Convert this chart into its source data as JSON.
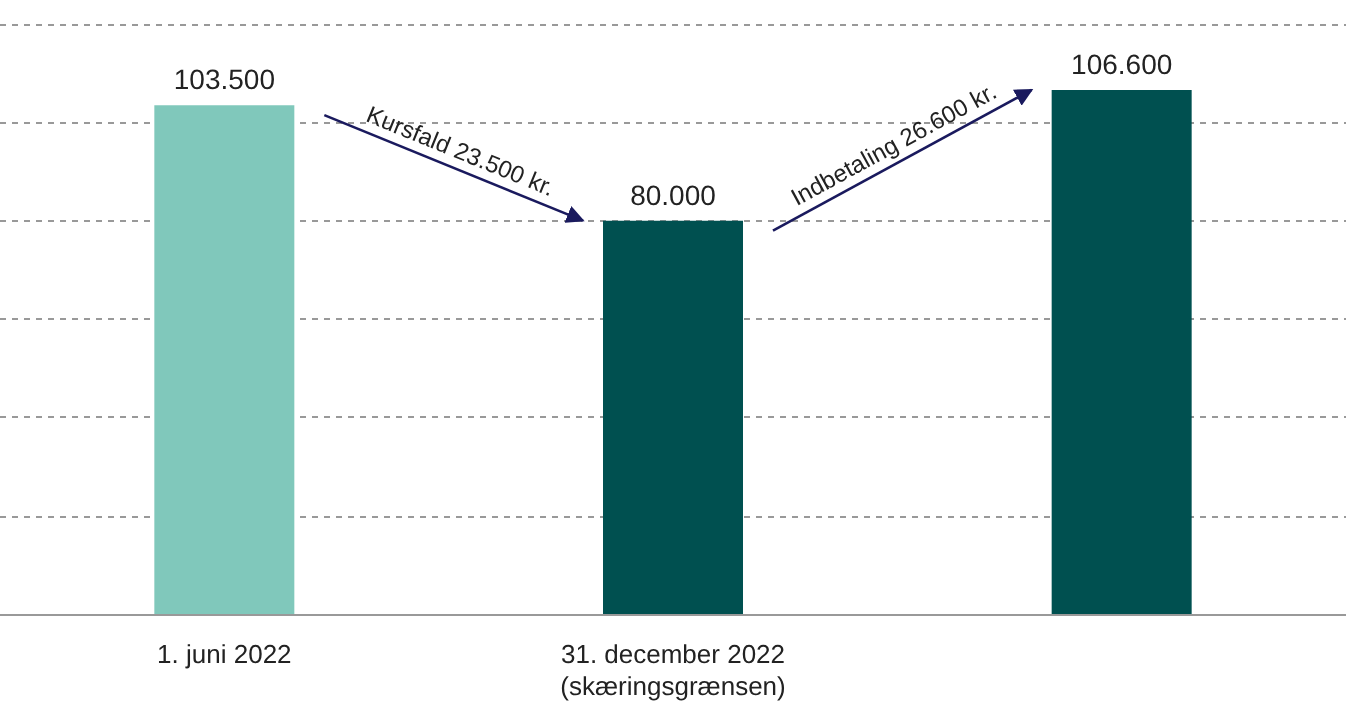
{
  "chart_data": {
    "type": "bar",
    "categories": [
      "1. juni 2022",
      "31. december 2022\n(skæringsgrænsen)",
      null
    ],
    "values": [
      103500,
      80000,
      106600
    ],
    "colors": [
      "#80c8bb",
      "#005050",
      "#005050"
    ],
    "value_labels": [
      "103.500",
      "80.000",
      "106.600"
    ],
    "ylim": [
      0,
      120000
    ],
    "yticks": [
      0,
      20000,
      40000,
      60000,
      80000,
      100000,
      120000
    ],
    "tick_labels": "x",
    "grid": "y",
    "annotations": [
      "Kursfald 23.500 kr.",
      "Indbetaling 26.600 kr."
    ]
  }
}
